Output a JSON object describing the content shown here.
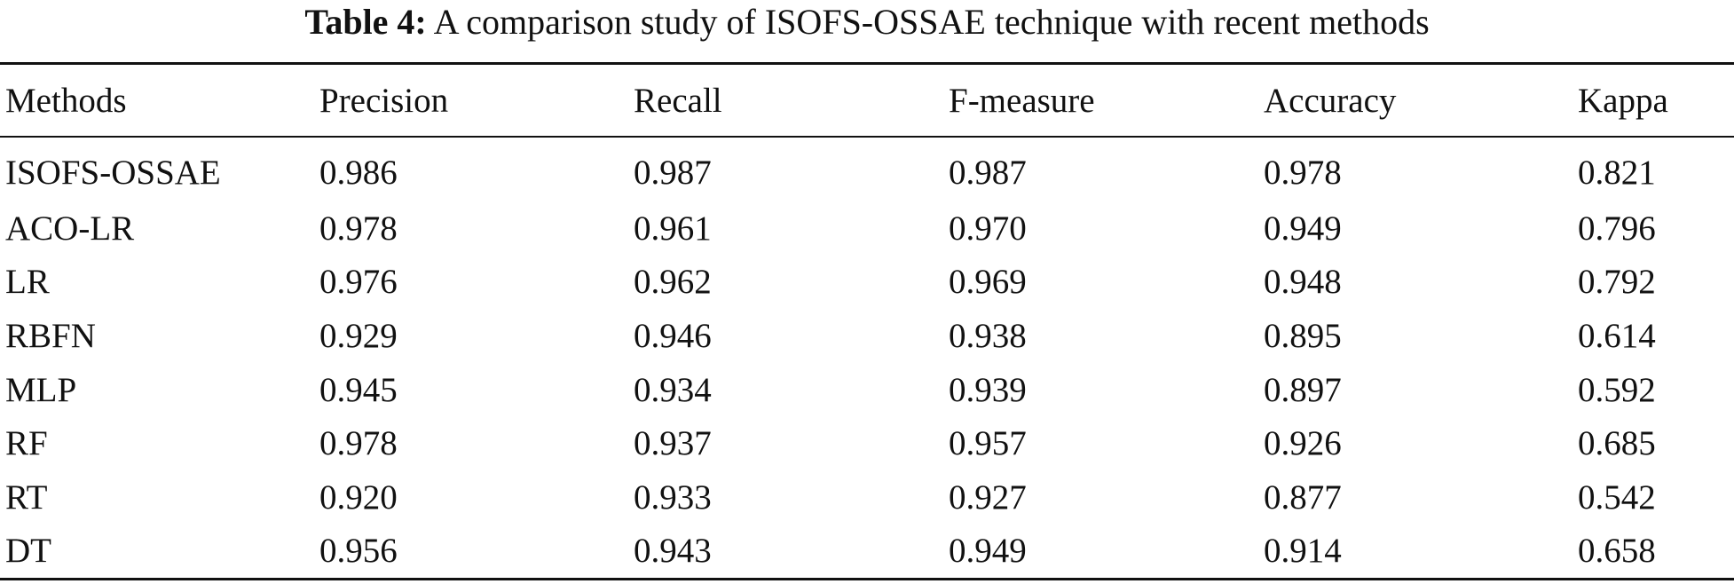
{
  "caption": {
    "label": "Table 4:",
    "text": "A comparison study of ISOFS-OSSAE technique with recent methods"
  },
  "chart_data": {
    "type": "table",
    "columns": [
      "Methods",
      "Precision",
      "Recall",
      "F-measure",
      "Accuracy",
      "Kappa"
    ],
    "rows": [
      [
        "ISOFS-OSSAE",
        "0.986",
        "0.987",
        "0.987",
        "0.978",
        "0.821"
      ],
      [
        "ACO-LR",
        "0.978",
        "0.961",
        "0.970",
        "0.949",
        "0.796"
      ],
      [
        "LR",
        "0.976",
        "0.962",
        "0.969",
        "0.948",
        "0.792"
      ],
      [
        "RBFN",
        "0.929",
        "0.946",
        "0.938",
        "0.895",
        "0.614"
      ],
      [
        "MLP",
        "0.945",
        "0.934",
        "0.939",
        "0.897",
        "0.592"
      ],
      [
        "RF",
        "0.978",
        "0.937",
        "0.957",
        "0.926",
        "0.685"
      ],
      [
        "RT",
        "0.920",
        "0.933",
        "0.927",
        "0.877",
        "0.542"
      ],
      [
        "DT",
        "0.956",
        "0.943",
        "0.949",
        "0.914",
        "0.658"
      ]
    ]
  }
}
